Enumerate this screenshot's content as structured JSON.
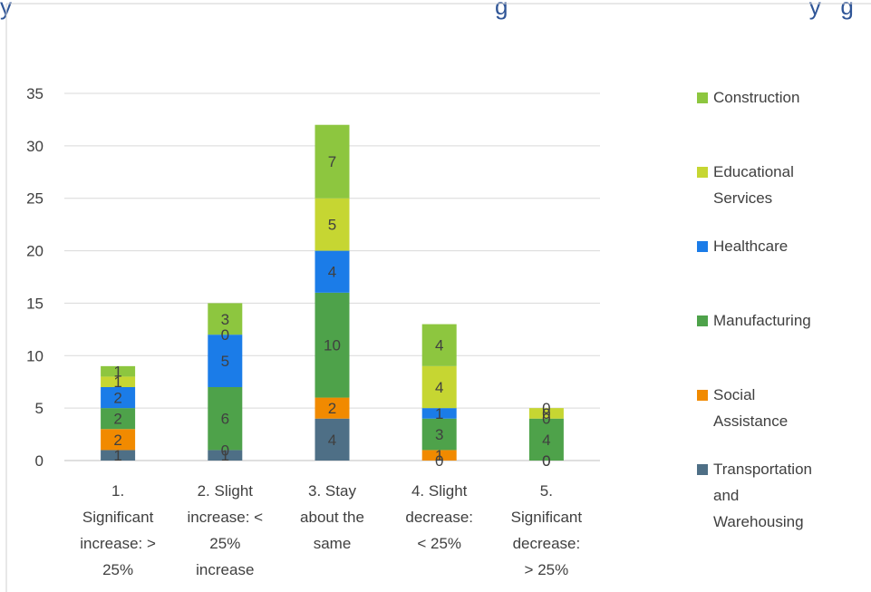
{
  "header": {
    "partial_title_left": "y",
    "partial_title_right": "g                                              y   g"
  },
  "chart_data": {
    "type": "bar",
    "stacked": true,
    "title": "",
    "xlabel": "",
    "ylabel": "",
    "ylim": [
      0,
      35
    ],
    "yticks": [
      0,
      5,
      10,
      15,
      20,
      25,
      30,
      35
    ],
    "grid": true,
    "legend_position": "right",
    "categories": [
      [
        "1.",
        "Significant",
        "increase: >",
        "25%"
      ],
      [
        "2. Slight",
        "increase: <",
        "25%",
        "increase"
      ],
      [
        "3. Stay",
        "about the",
        "same"
      ],
      [
        "4. Slight",
        "decrease:",
        "< 25%"
      ],
      [
        "5.",
        "Significant",
        "decrease:",
        "> 25%"
      ]
    ],
    "series": [
      {
        "name": "Transportation and Warehousing",
        "legend_lines": [
          "Transportation",
          "and",
          "Warehousing"
        ],
        "color": "#4e6f86",
        "values": [
          1,
          1,
          4,
          0,
          0
        ]
      },
      {
        "name": "Social Assistance",
        "legend_lines": [
          "Social",
          "Assistance"
        ],
        "color": "#f18a00",
        "values": [
          2,
          0,
          2,
          1,
          0
        ]
      },
      {
        "name": "Manufacturing",
        "legend_lines": [
          "Manufacturing"
        ],
        "color": "#4ea24a",
        "values": [
          2,
          6,
          10,
          3,
          4
        ]
      },
      {
        "name": "Healthcare",
        "legend_lines": [
          "Healthcare"
        ],
        "color": "#1b7ce8",
        "values": [
          2,
          5,
          4,
          1,
          0
        ]
      },
      {
        "name": "Educational Services",
        "legend_lines": [
          "Educational",
          "Services"
        ],
        "color": "#c6d632",
        "values": [
          1,
          0,
          5,
          4,
          1
        ]
      },
      {
        "name": "Construction",
        "legend_lines": [
          "Construction"
        ],
        "color": "#8dc63f",
        "values": [
          1,
          3,
          7,
          4,
          0
        ]
      }
    ],
    "data_labels": [
      [
        "1",
        "2",
        "2",
        "2",
        "1",
        "1"
      ],
      [
        "1",
        "0",
        "6",
        "5",
        "0",
        "3"
      ],
      [
        "4",
        "2",
        "10",
        "4",
        "5",
        "7"
      ],
      [
        "0",
        "1",
        "3",
        "1",
        "4",
        "4"
      ],
      [
        "0",
        "0",
        "4",
        "0",
        "0",
        "0"
      ]
    ]
  }
}
